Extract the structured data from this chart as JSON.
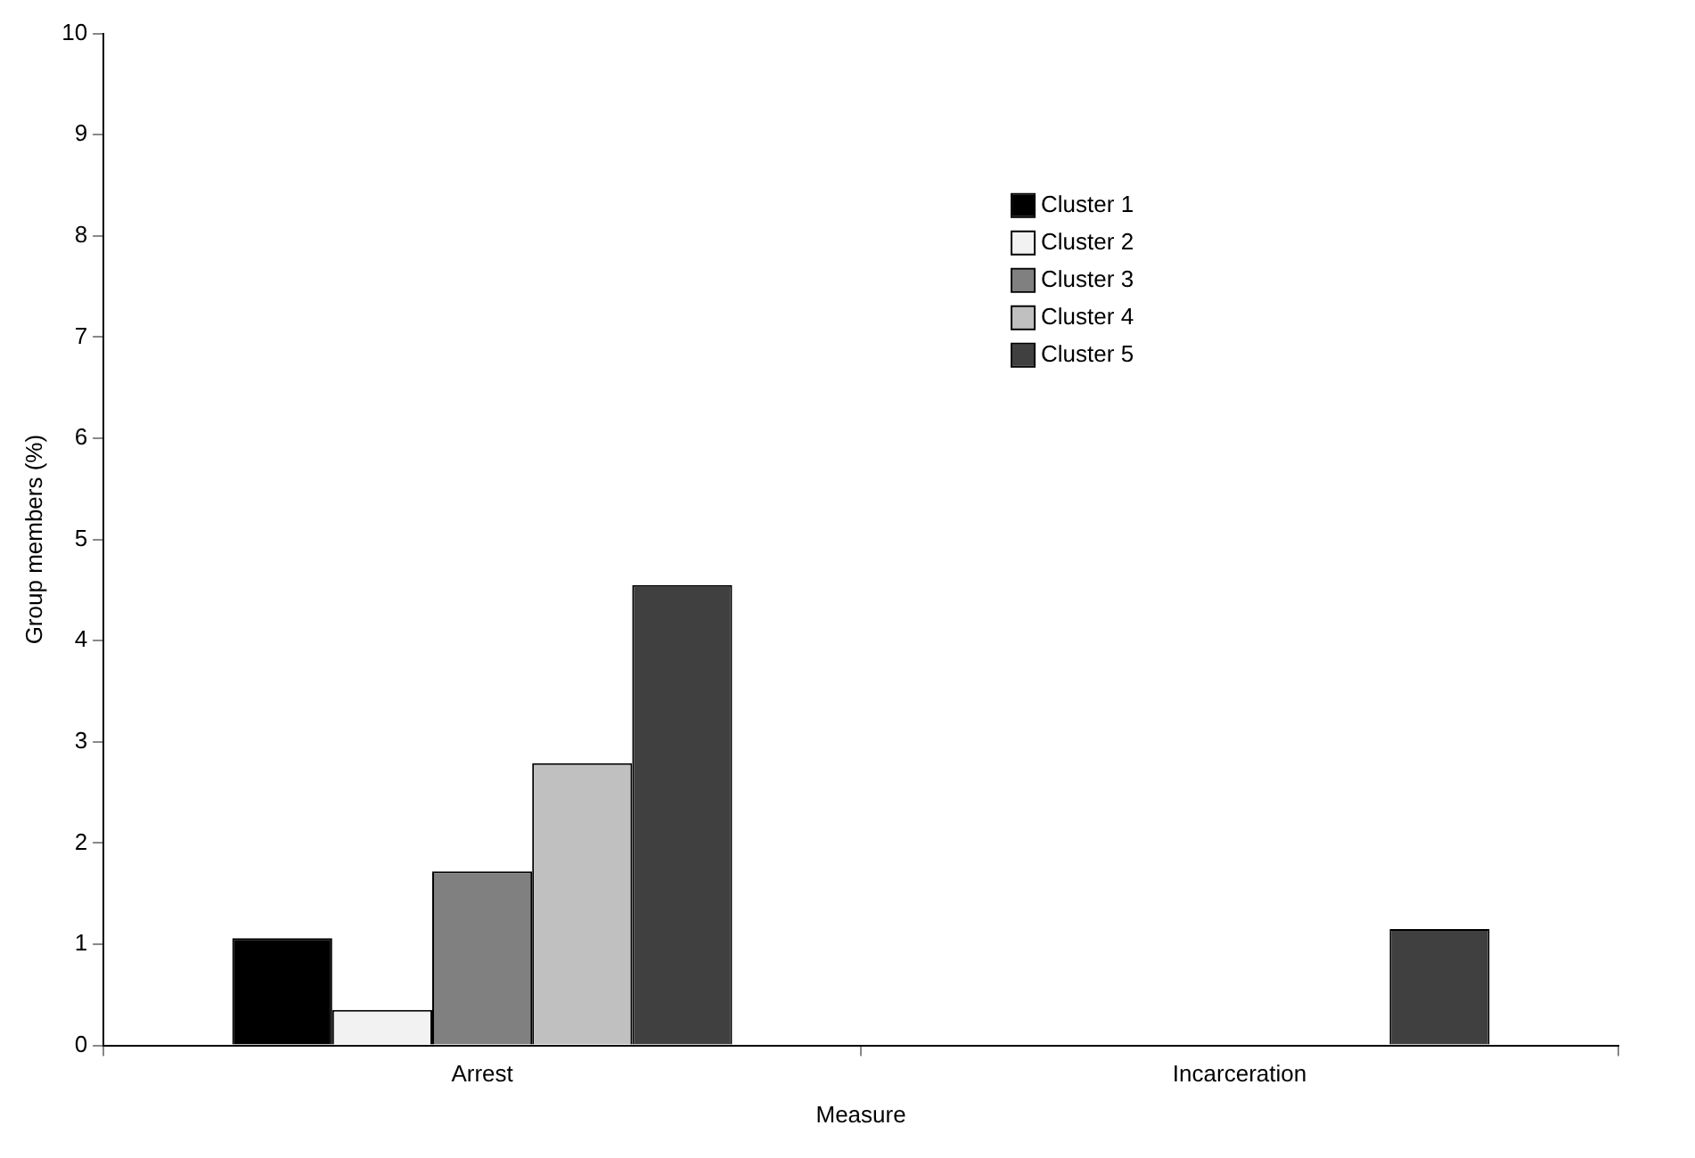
{
  "chart_data": {
    "type": "bar",
    "xlabel": "Measure",
    "ylabel": "Group members (%)",
    "categories": [
      "Arrest",
      "Incarceration"
    ],
    "series": [
      {
        "name": "Cluster 1",
        "color": "#000000",
        "values": [
          1.06,
          0
        ]
      },
      {
        "name": "Cluster 2",
        "color": "#f2f2f2",
        "values": [
          0.35,
          0
        ]
      },
      {
        "name": "Cluster 3",
        "color": "#808080",
        "values": [
          1.72,
          0
        ]
      },
      {
        "name": "Cluster 4",
        "color": "#c0c0c0",
        "values": [
          2.79,
          0
        ]
      },
      {
        "name": "Cluster 5",
        "color": "#404040",
        "values": [
          4.55,
          1.15
        ]
      }
    ],
    "ylim": [
      0,
      10
    ],
    "yticks": [
      0,
      1,
      2,
      3,
      4,
      5,
      6,
      7,
      8,
      9,
      10
    ],
    "grid": false,
    "legend": "top"
  }
}
